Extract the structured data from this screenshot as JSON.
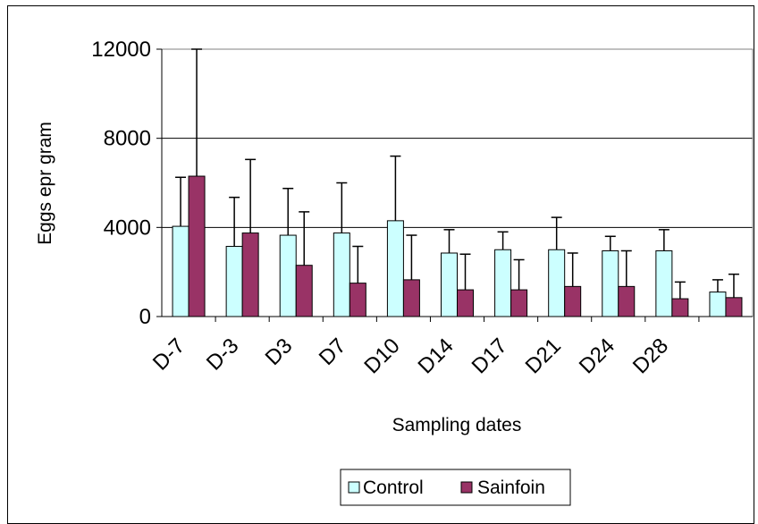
{
  "chart_data": {
    "type": "bar",
    "title": "",
    "xlabel": "Sampling dates",
    "ylabel": "Eggs epr gram",
    "ylim": [
      0,
      12000
    ],
    "yticks": [
      0,
      4000,
      8000,
      12000
    ],
    "grid": true,
    "legend_position": "bottom",
    "categories": [
      "D-7",
      "D-3",
      "D3",
      "D7",
      "D10",
      "D14",
      "D17",
      "D21",
      "D24",
      "D28",
      ""
    ],
    "series": [
      {
        "name": "Control",
        "color": "#ccffff",
        "values": [
          4050,
          3150,
          3650,
          3750,
          4300,
          2850,
          3000,
          3000,
          2950,
          2950,
          1100
        ],
        "error_upper": [
          6250,
          5350,
          5750,
          6000,
          7200,
          3900,
          3800,
          4450,
          3600,
          3900,
          1650
        ]
      },
      {
        "name": "Sainfoin",
        "color": "#993366",
        "values": [
          6300,
          3750,
          2300,
          1500,
          1650,
          1200,
          1200,
          1350,
          1350,
          800,
          850
        ],
        "error_upper": [
          12000,
          7050,
          4700,
          3150,
          3650,
          2800,
          2550,
          2850,
          2950,
          1550,
          1900
        ]
      }
    ]
  }
}
